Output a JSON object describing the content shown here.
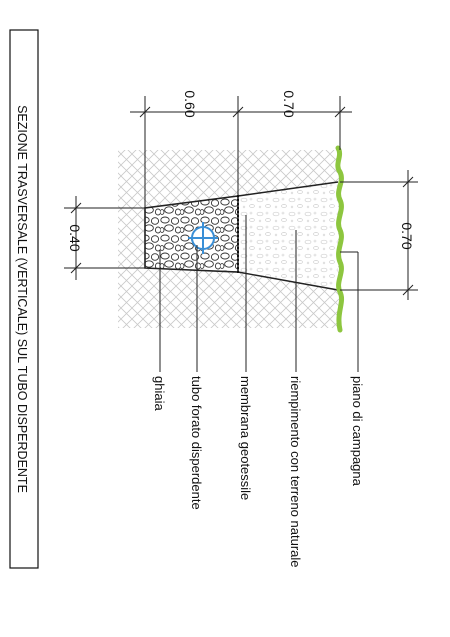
{
  "title": "SEZIONE TRASVERSALE (VERTICALE) SUL TUBO DISPERDENTE",
  "dimensions": {
    "top_width": "0.70",
    "upper_depth": "0.70",
    "lower_depth": "0.60",
    "bottom_width": "0.40"
  },
  "labels": {
    "ground": "piano di campagna",
    "backfill": "riempimento con terreno naturale",
    "membrane": "membrana geotessile",
    "pipe": "tubo forato disperdente",
    "gravel": "ghiaia"
  },
  "colors": {
    "grass": "#8dc63f",
    "pipe": "#3a8fd6",
    "line": "#222222"
  }
}
